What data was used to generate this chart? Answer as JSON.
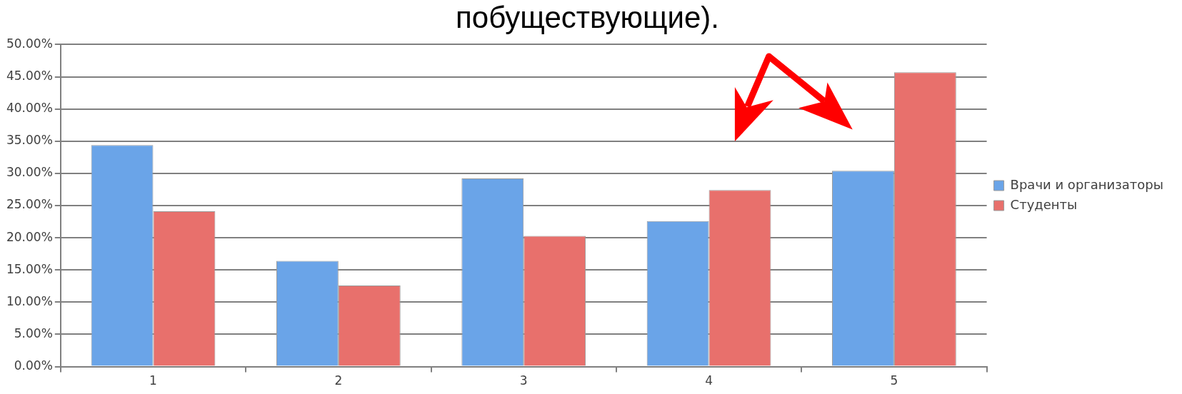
{
  "chart_data": {
    "type": "bar",
    "title": "побуществующие).",
    "categories": [
      "1",
      "2",
      "3",
      "4",
      "5"
    ],
    "series": [
      {
        "name": "Врачи и организаторы",
        "color": "#6aa4e8",
        "values": [
          34.4,
          16.4,
          29.2,
          22.6,
          30.4
        ]
      },
      {
        "name": "Студенты",
        "color": "#e8706c",
        "values": [
          24.1,
          12.6,
          20.3,
          27.4,
          45.7
        ]
      }
    ],
    "ylim": [
      0,
      50
    ],
    "yticks": [
      {
        "value": 0,
        "label": "0.00%"
      },
      {
        "value": 5,
        "label": "5.00%"
      },
      {
        "value": 10,
        "label": "10.00%"
      },
      {
        "value": 15,
        "label": "15.00%"
      },
      {
        "value": 20,
        "label": "20.00%"
      },
      {
        "value": 25,
        "label": "25.00%"
      },
      {
        "value": 30,
        "label": "30.00%"
      },
      {
        "value": 35,
        "label": "35.00%"
      },
      {
        "value": 40,
        "label": "40.00%"
      },
      {
        "value": 45,
        "label": "45.00%"
      },
      {
        "value": 50,
        "label": "50.00%"
      }
    ],
    "grid": "y",
    "legend": "right"
  }
}
